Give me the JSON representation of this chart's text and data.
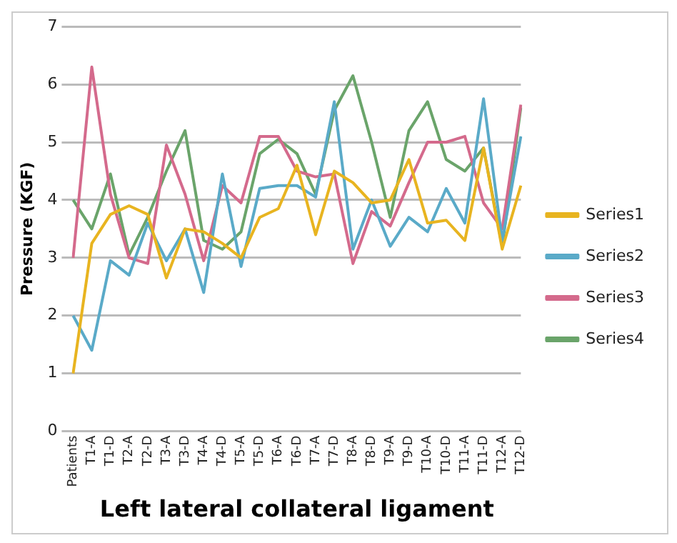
{
  "chart_data": {
    "type": "line",
    "xlabel": "Left lateral collateral ligament",
    "ylabel": "Pressure (KGF)",
    "categories": [
      "Patients",
      "T1-A",
      "T1-D",
      "T2-A",
      "T2-D",
      "T3-A",
      "T3-D",
      "T4-A",
      "T4-D",
      "T5-A",
      "T5-D",
      "T6-A",
      "T6-D",
      "T7-A",
      "T7-D",
      "T8-A",
      "T8-D",
      "T9-A",
      "T9-D",
      "T10-A",
      "T10-D",
      "T11-A",
      "T11-D",
      "T12-A",
      "T12-D"
    ],
    "series": [
      {
        "name": "Series1",
        "color": "#e8b420",
        "values": [
          1.0,
          3.25,
          3.75,
          3.9,
          3.75,
          2.65,
          3.5,
          3.45,
          3.25,
          3.0,
          3.7,
          3.85,
          4.6,
          3.4,
          4.5,
          4.3,
          3.95,
          4.0,
          4.7,
          3.6,
          3.65,
          3.3,
          4.9,
          3.15,
          4.25
        ]
      },
      {
        "name": "Series2",
        "color": "#5aaac8",
        "values": [
          2.0,
          1.4,
          2.95,
          2.7,
          3.6,
          2.95,
          3.5,
          2.4,
          4.45,
          2.85,
          4.2,
          4.25,
          4.25,
          4.05,
          5.7,
          3.15,
          4.0,
          3.2,
          3.7,
          3.45,
          4.2,
          3.6,
          5.75,
          3.3,
          5.1
        ]
      },
      {
        "name": "Series3",
        "color": "#d46a8c",
        "values": [
          3.0,
          6.3,
          4.1,
          3.0,
          2.9,
          4.95,
          4.1,
          2.95,
          4.25,
          3.95,
          5.1,
          5.1,
          4.5,
          4.4,
          4.45,
          2.9,
          3.8,
          3.55,
          4.3,
          5.0,
          5.0,
          5.1,
          3.95,
          3.5,
          5.65
        ]
      },
      {
        "name": "Series4",
        "color": "#6aa46a",
        "values": [
          4.0,
          3.5,
          4.45,
          3.05,
          3.7,
          4.5,
          5.2,
          3.3,
          3.15,
          3.45,
          4.8,
          5.05,
          4.8,
          4.1,
          5.55,
          6.15,
          5.0,
          3.7,
          5.2,
          5.7,
          4.7,
          4.5,
          4.9,
          3.2,
          5.6
        ]
      }
    ],
    "ylim": [
      0,
      7
    ],
    "yticks": [
      0,
      1,
      2,
      3,
      4,
      5,
      6,
      7
    ],
    "grid": "y",
    "legend": "right",
    "marker": "none",
    "line_style": "solid"
  }
}
